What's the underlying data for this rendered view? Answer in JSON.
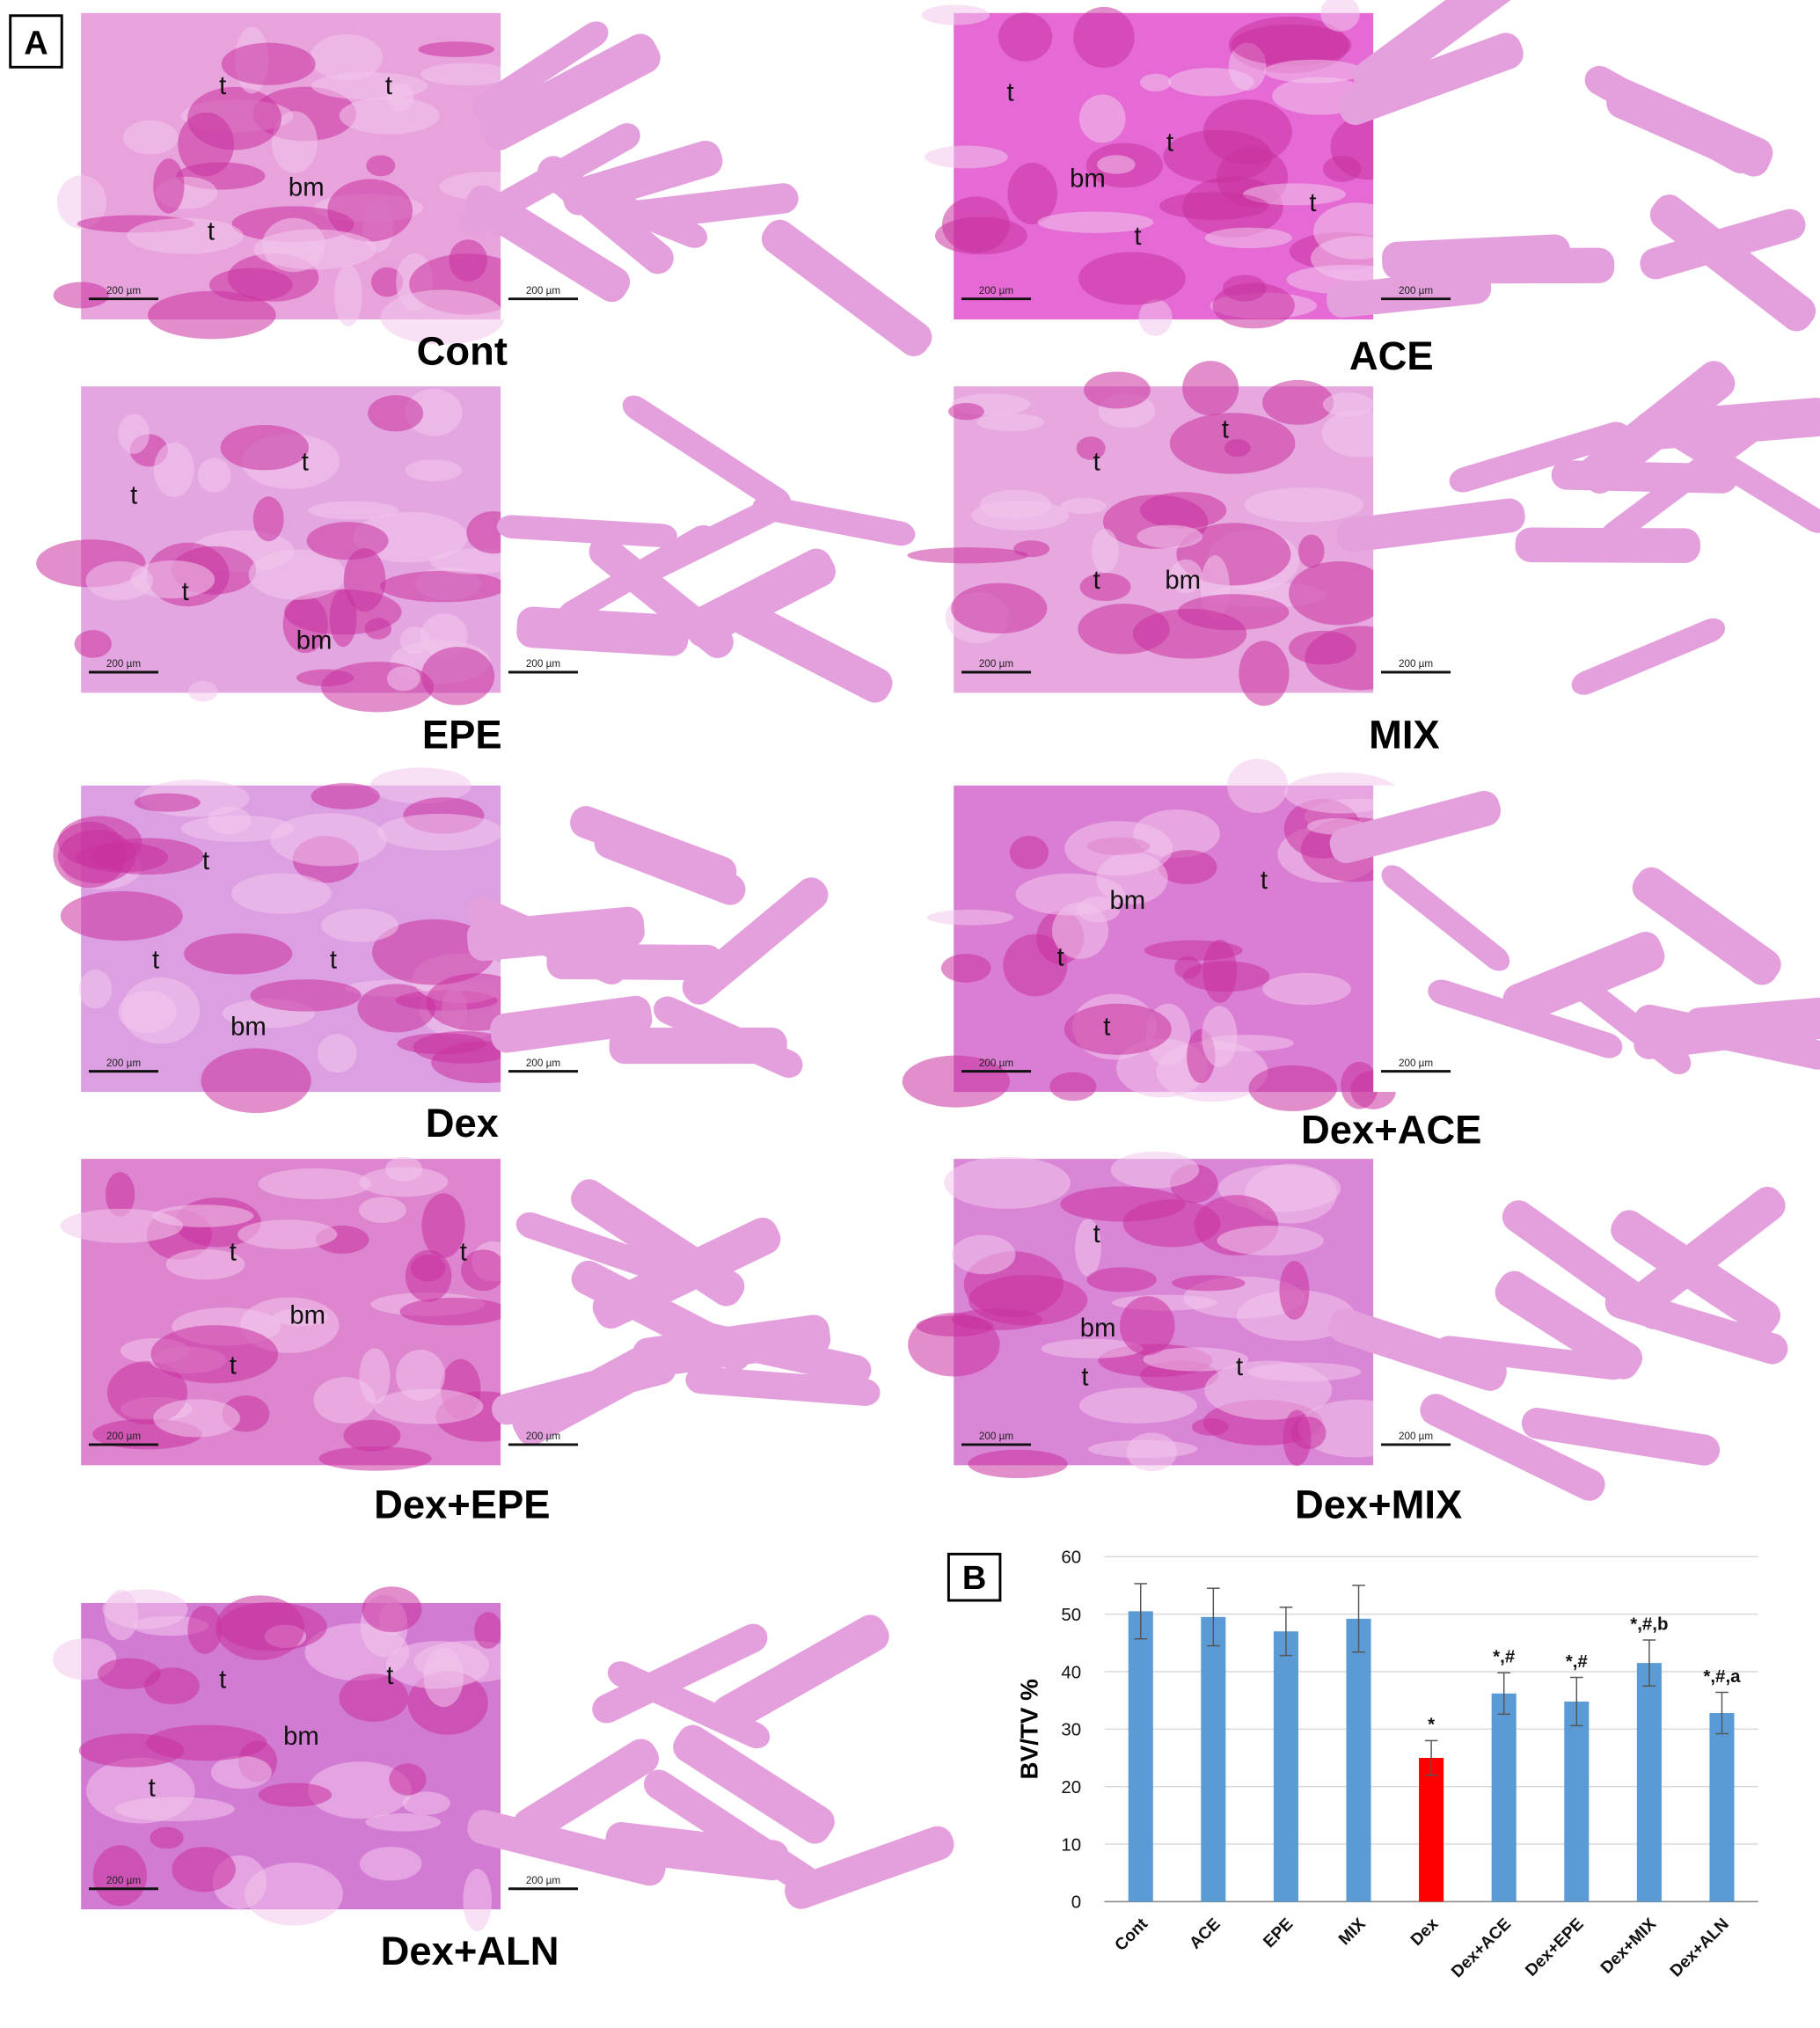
{
  "figure": {
    "panel_a_label": "A",
    "panel_b_label": "B",
    "panels": [
      {
        "name": "Cont",
        "annotations": [
          "t",
          "t",
          "t",
          "bm"
        ],
        "scale_bar": "200 µm"
      },
      {
        "name": "ACE",
        "annotations": [
          "t",
          "t",
          "t",
          "t",
          "bm"
        ],
        "scale_bar": "200 µm"
      },
      {
        "name": "EPE",
        "annotations": [
          "t",
          "t",
          "t",
          "bm"
        ],
        "scale_bar": "200 µm"
      },
      {
        "name": "MIX",
        "annotations": [
          "t",
          "t",
          "t",
          "bm"
        ],
        "scale_bar": "200 µm"
      },
      {
        "name": "Dex",
        "annotations": [
          "t",
          "t",
          "t",
          "bm"
        ],
        "scale_bar": "200 µm"
      },
      {
        "name": "Dex+ACE",
        "annotations": [
          "bm",
          "t",
          "t",
          "t"
        ],
        "scale_bar": "200 µm"
      },
      {
        "name": "Dex+EPE",
        "annotations": [
          "t",
          "t",
          "t",
          "bm"
        ],
        "scale_bar": "200 µm"
      },
      {
        "name": "Dex+MIX",
        "annotations": [
          "t",
          "bm",
          "t",
          "t"
        ],
        "scale_bar": "200 µm"
      },
      {
        "name": "Dex+ALN",
        "annotations": [
          "t",
          "t",
          "t",
          "bm"
        ],
        "scale_bar": "200 µm"
      }
    ]
  },
  "chart_data": {
    "type": "bar",
    "ylabel": "BV/TV %",
    "categories": [
      "Cont",
      "ACE",
      "EPE",
      "MIX",
      "Dex",
      "Dex+ACE",
      "Dex+EPE",
      "Dex+MIX",
      "Dex+ALN"
    ],
    "values": [
      50.5,
      49.5,
      47,
      49.2,
      25,
      36.2,
      34.8,
      41.5,
      32.8
    ],
    "errors": [
      4.8,
      5,
      4.2,
      5.8,
      3,
      3.6,
      4.2,
      4,
      3.6
    ],
    "colors": [
      "#5b9bd5",
      "#5b9bd5",
      "#5b9bd5",
      "#5b9bd5",
      "#ff0000",
      "#5b9bd5",
      "#5b9bd5",
      "#5b9bd5",
      "#5b9bd5"
    ],
    "annotations": [
      null,
      null,
      null,
      null,
      "*",
      "*,#",
      "*,#",
      "*,#,b",
      "*,#,a"
    ],
    "ylim": [
      0,
      60
    ],
    "yticks": [
      0,
      10,
      20,
      30,
      40,
      50,
      60
    ],
    "grid": true
  }
}
